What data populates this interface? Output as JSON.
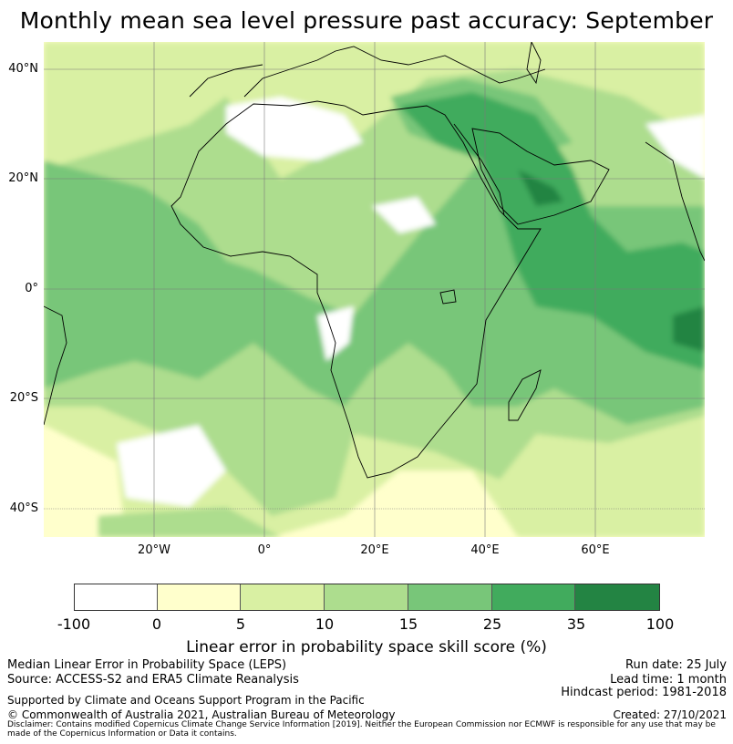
{
  "title": "Monthly mean sea level pressure past accuracy: September",
  "map": {
    "lat_labels": [
      "40°N",
      "20°N",
      "0°",
      "20°S",
      "40°S"
    ],
    "lon_labels": [
      "20°W",
      "0°",
      "20°E",
      "40°E",
      "60°E"
    ],
    "colors": [
      "#ffffff",
      "#ffffcc",
      "#d9f0a3",
      "#addd8e",
      "#78c679",
      "#41ab5d",
      "#238443"
    ]
  },
  "colorbar": {
    "ticks": [
      "-100",
      "0",
      "5",
      "10",
      "15",
      "25",
      "35",
      "100"
    ],
    "label": "Linear error in probability space skill score (%)"
  },
  "footer": {
    "left_line1": "Median Linear Error in Probability Space (LEPS)",
    "left_line2": "Source: ACCESS-S2 and ERA5 Climate Reanalysis",
    "left_line3": "Supported by Climate and Oceans Support Program in the Pacific",
    "left_line4": "© Commonwealth of Australia 2021, Australian Bureau of Meteorology",
    "right_line1": "Run date: 25 July",
    "right_line2": "Lead time: 1 month",
    "right_line3": "Hindcast period: 1981-2018",
    "right_line4": "Created: 27/10/2021",
    "disclaimer": "Disclaimer: Contains modified Copernicus Climate Change Service Information [2019]. Neither the European Commission nor ECMWF is responsible for any use that may be made of the Copernicus Information or Data it contains."
  }
}
